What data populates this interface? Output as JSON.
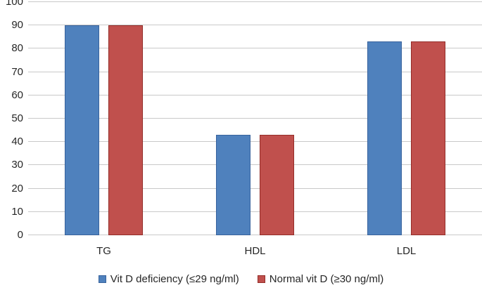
{
  "chart_data": {
    "type": "bar",
    "title": "",
    "xlabel": "",
    "ylabel": "",
    "categories": [
      "TG",
      "HDL",
      "LDL"
    ],
    "series": [
      {
        "name": "Vit D deficiency (≤29 ng/ml)",
        "values": [
          90,
          43,
          83
        ],
        "fill": "#4F81BD",
        "border": "#38639D"
      },
      {
        "name": "Normal vit D (≥30 ng/ml)",
        "values": [
          90,
          43,
          83
        ],
        "fill": "#C0504D",
        "border": "#942D29"
      }
    ],
    "ylim": [
      0,
      100
    ],
    "ytick_step": 10,
    "ytick_labels": [
      "0",
      "10",
      "20",
      "30",
      "40",
      "50",
      "60",
      "70",
      "80",
      "90",
      "100"
    ],
    "grid": true,
    "legend_position": "bottom"
  },
  "colors": {
    "background": "#FFFFFF",
    "gridline": "#C9C9C9",
    "axis_text": "#262626"
  }
}
